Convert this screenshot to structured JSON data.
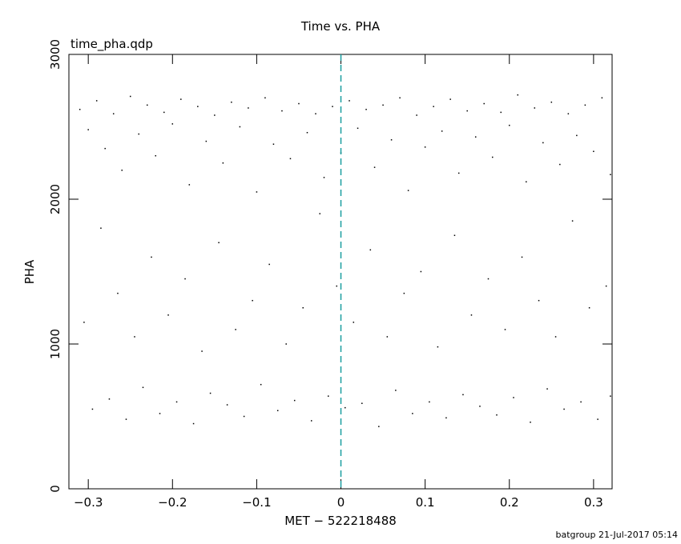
{
  "chart_data": {
    "type": "scatter",
    "title": "Time vs. PHA",
    "subtitle": "time_pha.qdp",
    "x_label": "MET − 522218488",
    "y_label": "PHA",
    "footer": "batgroup 21-Jul-2017 05:14",
    "xlim": [
      -0.323,
      0.322
    ],
    "ylim": [
      0,
      3000
    ],
    "xticks": [
      {
        "value": -0.3,
        "label": "−0.3"
      },
      {
        "value": -0.2,
        "label": "−0.2"
      },
      {
        "value": -0.1,
        "label": "−0.1"
      },
      0,
      0.1,
      0.2,
      0.3
    ],
    "yticks": [
      0,
      1000,
      2000,
      3000
    ],
    "vline": 0,
    "vline_color": "#1a9ea0",
    "color": "#000000",
    "x": [
      -0.31,
      -0.29,
      -0.27,
      -0.25,
      -0.23,
      -0.21,
      -0.19,
      -0.17,
      -0.15,
      -0.13,
      -0.11,
      -0.09,
      -0.07,
      -0.05,
      -0.03,
      -0.01,
      0.01,
      0.03,
      0.05,
      0.07,
      0.09,
      0.11,
      0.13,
      0.15,
      0.17,
      0.19,
      0.21,
      0.23,
      0.25,
      0.27,
      0.29,
      0.31,
      -0.3,
      -0.28,
      -0.26,
      -0.24,
      -0.22,
      -0.2,
      -0.18,
      -0.16,
      -0.14,
      -0.12,
      -0.1,
      -0.08,
      -0.06,
      -0.04,
      -0.02,
      0.0,
      0.02,
      0.04,
      0.06,
      0.08,
      0.1,
      0.12,
      0.14,
      0.16,
      0.18,
      0.2,
      0.22,
      0.24,
      0.26,
      0.28,
      0.3,
      0.32,
      -0.305,
      -0.285,
      -0.265,
      -0.245,
      -0.225,
      -0.205,
      -0.185,
      -0.165,
      -0.145,
      -0.125,
      -0.105,
      -0.085,
      -0.065,
      -0.045,
      -0.025,
      -0.005,
      0.015,
      0.035,
      0.055,
      0.075,
      0.095,
      0.115,
      0.135,
      0.155,
      0.175,
      0.195,
      0.215,
      0.235,
      0.255,
      0.275,
      0.295,
      0.315,
      -0.295,
      -0.275,
      -0.255,
      -0.235,
      -0.215,
      -0.195,
      -0.175,
      -0.155,
      -0.135,
      -0.115,
      -0.095,
      -0.075,
      -0.055,
      -0.035,
      -0.015,
      0.005,
      0.025,
      0.045,
      0.065,
      0.085,
      0.105,
      0.125,
      0.145,
      0.165,
      0.185,
      0.205,
      0.225,
      0.245,
      0.265,
      0.285,
      0.305,
      0.32
    ],
    "values": [
      2620,
      2680,
      2590,
      2710,
      2650,
      2600,
      2690,
      2640,
      2580,
      2670,
      2630,
      2700,
      2610,
      2660,
      2590,
      2640,
      2680,
      2620,
      2650,
      2700,
      2580,
      2640,
      2690,
      2610,
      2660,
      2600,
      2720,
      2630,
      2670,
      2590,
      2650,
      2700,
      2480,
      2350,
      2200,
      2450,
      2300,
      2520,
      2100,
      2400,
      2250,
      2500,
      2050,
      2380,
      2280,
      2460,
      2150,
      2320,
      2490,
      2220,
      2410,
      2060,
      2360,
      2470,
      2180,
      2430,
      2290,
      2510,
      2120,
      2390,
      2240,
      2440,
      2330,
      2170,
      1150,
      1800,
      1350,
      1050,
      1600,
      1200,
      1450,
      950,
      1700,
      1100,
      1300,
      1550,
      1000,
      1250,
      1900,
      1400,
      1150,
      1650,
      1050,
      1350,
      1500,
      980,
      1750,
      1200,
      1450,
      1100,
      1600,
      1300,
      1050,
      1850,
      1250,
      1400,
      550,
      620,
      480,
      700,
      520,
      600,
      450,
      660,
      580,
      500,
      720,
      540,
      610,
      470,
      640,
      560,
      590,
      430,
      680,
      520,
      600,
      490,
      650,
      570,
      510,
      630,
      460,
      690,
      550,
      600,
      480,
      640
    ]
  }
}
